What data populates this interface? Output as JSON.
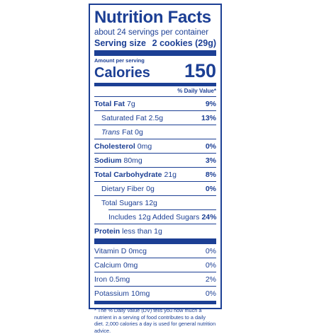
{
  "label": {
    "title": "Nutrition Facts",
    "servings_per_container": "about 24 servings per container",
    "serving_size_label": "Serving size",
    "serving_size_value": "2 cookies (29g)",
    "amount_per_serving": "Amount per serving",
    "calories_label": "Calories",
    "calories_value": "150",
    "daily_value_header": "% Daily Value*",
    "rows": [
      {
        "name": "Total Fat",
        "amount": "7g",
        "dv": "9%"
      },
      {
        "name": "Saturated Fat",
        "amount": "2.5g",
        "dv": "13%"
      },
      {
        "name": "Trans",
        "amount": "Fat 0g",
        "dv": ""
      },
      {
        "name": "Cholesterol",
        "amount": "0mg",
        "dv": "0%"
      },
      {
        "name": "Sodium",
        "amount": "80mg",
        "dv": "3%"
      },
      {
        "name": "Total Carbohydrate",
        "amount": "21g",
        "dv": "8%"
      },
      {
        "name": "Dietary Fiber",
        "amount": "0g",
        "dv": "0%"
      },
      {
        "name": "Total Sugars",
        "amount": "12g",
        "dv": ""
      },
      {
        "name": "Includes 12g Added Sugars",
        "amount": "",
        "dv": "24%"
      },
      {
        "name": "Protein",
        "amount": "less than 1g",
        "dv": ""
      }
    ],
    "vitamins": [
      {
        "name": "Vitamin D",
        "amount": "0mcg",
        "dv": "0%"
      },
      {
        "name": "Calcium",
        "amount": "0mg",
        "dv": "0%"
      },
      {
        "name": "Iron",
        "amount": "0.5mg",
        "dv": "2%"
      },
      {
        "name": "Potassium",
        "amount": "10mg",
        "dv": "0%"
      }
    ],
    "footnote": "* The % Daily Value (DV) tells you how much a nutrient in a serving of food contributes to a daily diet. 2,000 calories a day is used for general nutrition advice."
  }
}
